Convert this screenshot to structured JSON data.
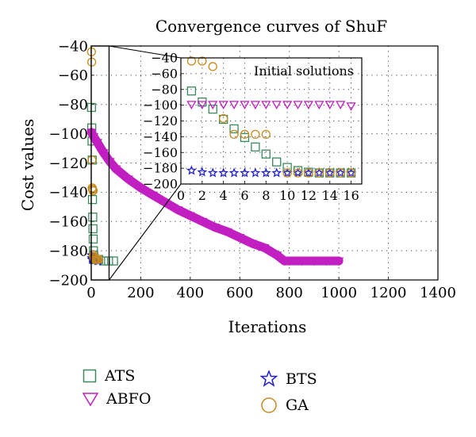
{
  "chart_data": [
    {
      "type": "scatter",
      "title": "Convergence curves of ShuF",
      "xlabel": "Iterations",
      "ylabel": "Cost values",
      "xlim": [
        0,
        1400
      ],
      "ylim": [
        -200,
        -40
      ],
      "xticks": [
        0,
        200,
        400,
        600,
        800,
        1000,
        1200,
        1400
      ],
      "yticks": [
        -40,
        -60,
        -80,
        -100,
        -120,
        -140,
        -160,
        -180,
        -200
      ],
      "grid": true,
      "legend_position": "below",
      "series": [
        {
          "name": "ATS",
          "marker": "square",
          "color": "#3a8a5e",
          "x": [
            1,
            2,
            3,
            4,
            5,
            6,
            7,
            8,
            9,
            10,
            12,
            14,
            16,
            20,
            30,
            50,
            70,
            90
          ],
          "y": [
            -82,
            -96,
            -105,
            -118,
            -145,
            -157,
            -165,
            -172,
            -180,
            -183,
            -185,
            -186,
            -186,
            -186,
            -186,
            -187,
            -187,
            -187
          ]
        },
        {
          "name": "ABFO",
          "marker": "triangle-down",
          "color": "#c21fc2",
          "x": [
            1,
            10,
            25,
            50,
            75,
            100,
            150,
            200,
            250,
            300,
            350,
            400,
            450,
            500,
            550,
            600,
            650,
            700,
            750,
            780,
            800,
            850,
            900,
            950,
            1000
          ],
          "y": [
            -99,
            -102,
            -106,
            -113,
            -119,
            -124,
            -131,
            -137,
            -142,
            -147,
            -152,
            -156,
            -160,
            -164,
            -167,
            -171,
            -175,
            -178,
            -183,
            -187,
            -187,
            -187,
            -187,
            -187,
            -187
          ]
        },
        {
          "name": "BTS",
          "marker": "star",
          "color": "#2222cc",
          "x": [
            1,
            2,
            3,
            4,
            5,
            6,
            8,
            10,
            12,
            14,
            16,
            20,
            25,
            30
          ],
          "y": [
            -183,
            -185,
            -186,
            -186,
            -186,
            -186,
            -186,
            -186,
            -186,
            -186,
            -186,
            -186,
            -187,
            -187
          ]
        },
        {
          "name": "GA",
          "marker": "circle",
          "color": "#c98a1e",
          "x": [
            1,
            2,
            3,
            4,
            5,
            6,
            7,
            8,
            9,
            10,
            12,
            14,
            16,
            20,
            25,
            30
          ],
          "y": [
            -44,
            -51,
            -118,
            -137,
            -138,
            -138,
            -139,
            -139,
            -183,
            -184,
            -185,
            -186,
            -186,
            -186,
            -186,
            -186
          ]
        }
      ]
    },
    {
      "type": "scatter",
      "title": "Initial solutions",
      "xlim": [
        0,
        17
      ],
      "ylim": [
        -200,
        -40
      ],
      "xticks": [
        0,
        2,
        4,
        6,
        8,
        10,
        12,
        14,
        16
      ],
      "yticks": [
        -40,
        -60,
        -80,
        -100,
        -120,
        -140,
        -160,
        -180,
        -200
      ],
      "grid": true,
      "series": [
        {
          "name": "ATS",
          "marker": "square",
          "color": "#3a8a5e",
          "x": [
            1,
            2,
            3,
            4,
            5,
            6,
            7,
            8,
            9,
            10,
            11,
            12,
            13,
            14,
            15,
            16
          ],
          "y": [
            -82,
            -96,
            -105,
            -118,
            -130,
            -141,
            -153,
            -162,
            -172,
            -179,
            -183,
            -185,
            -186,
            -186,
            -186,
            -186
          ]
        },
        {
          "name": "ABFO",
          "marker": "triangle-down",
          "color": "#c21fc2",
          "x": [
            1,
            2,
            3,
            4,
            5,
            6,
            7,
            8,
            9,
            10,
            11,
            12,
            13,
            14,
            15,
            16
          ],
          "y": [
            -99,
            -99,
            -99,
            -99,
            -99,
            -99,
            -99,
            -99,
            -99,
            -99,
            -99,
            -99,
            -99,
            -99,
            -99,
            -101
          ]
        },
        {
          "name": "BTS",
          "marker": "star",
          "color": "#2222cc",
          "x": [
            1,
            2,
            3,
            4,
            5,
            6,
            7,
            8,
            9,
            10,
            11,
            12,
            13,
            14,
            15,
            16
          ],
          "y": [
            -183,
            -185,
            -186,
            -186,
            -186,
            -186,
            -186,
            -186,
            -186,
            -186,
            -186,
            -186,
            -186,
            -186,
            -186,
            -186
          ]
        },
        {
          "name": "GA",
          "marker": "circle",
          "color": "#c98a1e",
          "x": [
            1,
            2,
            3,
            4,
            5,
            6,
            7,
            8,
            10,
            11,
            12,
            13,
            14,
            15,
            16
          ],
          "y": [
            -44,
            -44,
            -51,
            -117,
            -137,
            -137,
            -137,
            -137,
            -186,
            -186,
            -186,
            -186,
            -186,
            -186,
            -186
          ]
        }
      ]
    }
  ]
}
